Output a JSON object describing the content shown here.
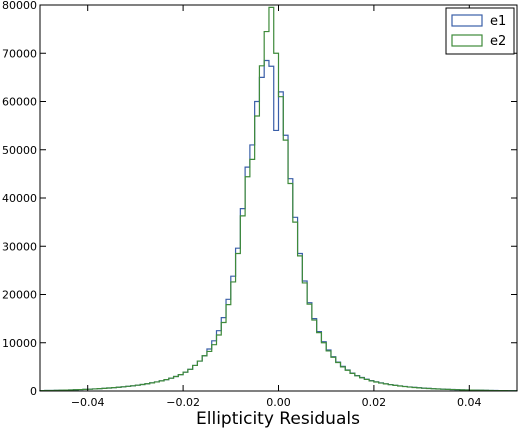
{
  "chart_data": {
    "type": "histogram",
    "title": "",
    "xlabel": "Ellipticity Residuals",
    "ylabel": "",
    "xlim": [
      -0.05,
      0.05
    ],
    "ylim": [
      0,
      80000
    ],
    "xticks": [
      -0.04,
      -0.02,
      0.0,
      0.02,
      0.04
    ],
    "xtick_labels": [
      "−0.04",
      "−0.02",
      "0.00",
      "0.02",
      "0.04"
    ],
    "yticks": [
      0,
      10000,
      20000,
      30000,
      40000,
      50000,
      60000,
      70000,
      80000
    ],
    "ytick_labels": [
      "0",
      "10000",
      "20000",
      "30000",
      "40000",
      "50000",
      "60000",
      "70000",
      "80000"
    ],
    "grid": false,
    "legend_position": "top-right",
    "bin_width": 0.001,
    "bin_left_edges": [
      -0.05,
      -0.049,
      -0.048,
      -0.047,
      -0.046,
      -0.045,
      -0.044,
      -0.043,
      -0.042,
      -0.041,
      -0.04,
      -0.039,
      -0.038,
      -0.037,
      -0.036,
      -0.035,
      -0.034,
      -0.033,
      -0.032,
      -0.031,
      -0.03,
      -0.029,
      -0.028,
      -0.027,
      -0.026,
      -0.025,
      -0.024,
      -0.023,
      -0.022,
      -0.021,
      -0.02,
      -0.019,
      -0.018,
      -0.017,
      -0.016,
      -0.015,
      -0.014,
      -0.013,
      -0.012,
      -0.011,
      -0.01,
      -0.009,
      -0.008,
      -0.007,
      -0.006,
      -0.005,
      -0.004,
      -0.003,
      -0.002,
      -0.001,
      0.0,
      0.001,
      0.002,
      0.003,
      0.004,
      0.005,
      0.006,
      0.007,
      0.008,
      0.009,
      0.01,
      0.011,
      0.012,
      0.013,
      0.014,
      0.015,
      0.016,
      0.017,
      0.018,
      0.019,
      0.02,
      0.021,
      0.022,
      0.023,
      0.024,
      0.025,
      0.026,
      0.027,
      0.028,
      0.029,
      0.03,
      0.031,
      0.032,
      0.033,
      0.034,
      0.035,
      0.036,
      0.037,
      0.038,
      0.039,
      0.04,
      0.041,
      0.042,
      0.043,
      0.044,
      0.045,
      0.046,
      0.047,
      0.048,
      0.049
    ],
    "series": [
      {
        "name": "e1",
        "color": "#3a5fa8",
        "values": [
          80,
          100,
          120,
          140,
          160,
          190,
          220,
          260,
          300,
          340,
          380,
          430,
          490,
          550,
          620,
          700,
          780,
          870,
          970,
          1080,
          1200,
          1340,
          1500,
          1680,
          1880,
          2100,
          2350,
          2650,
          3000,
          3400,
          3900,
          4500,
          5300,
          6200,
          7300,
          8700,
          10400,
          12500,
          15200,
          19000,
          23800,
          29600,
          37800,
          46400,
          51000,
          60000,
          65000,
          68500,
          67300,
          54000,
          62000,
          53000,
          44000,
          36000,
          28500,
          22800,
          18300,
          15000,
          12300,
          10200,
          8500,
          7100,
          6000,
          5100,
          4350,
          3700,
          3200,
          2800,
          2450,
          2150,
          1900,
          1680,
          1490,
          1330,
          1180,
          1050,
          940,
          840,
          750,
          670,
          600,
          540,
          480,
          430,
          390,
          350,
          310,
          280,
          250,
          220,
          200,
          180,
          160,
          140,
          120,
          100,
          85,
          70,
          60,
          50
        ]
      },
      {
        "name": "e2",
        "color": "#3e8a3a",
        "values": [
          80,
          100,
          120,
          140,
          160,
          190,
          220,
          260,
          300,
          340,
          380,
          430,
          490,
          550,
          620,
          700,
          780,
          870,
          970,
          1080,
          1200,
          1340,
          1500,
          1680,
          1880,
          2100,
          2350,
          2650,
          3000,
          3400,
          3900,
          4500,
          5300,
          6200,
          7300,
          8200,
          9600,
          11600,
          14200,
          17900,
          22600,
          28500,
          36300,
          44400,
          48000,
          57000,
          67400,
          74500,
          79500,
          70000,
          61000,
          52000,
          43000,
          35000,
          28000,
          22400,
          18000,
          14700,
          12100,
          10000,
          8300,
          7000,
          5900,
          5000,
          4300,
          3650,
          3150,
          2750,
          2400,
          2100,
          1860,
          1650,
          1470,
          1310,
          1160,
          1030,
          920,
          820,
          730,
          650,
          580,
          520,
          470,
          420,
          380,
          340,
          300,
          270,
          240,
          210,
          190,
          170,
          150,
          130,
          110,
          95,
          80,
          70,
          60,
          50
        ]
      }
    ]
  }
}
